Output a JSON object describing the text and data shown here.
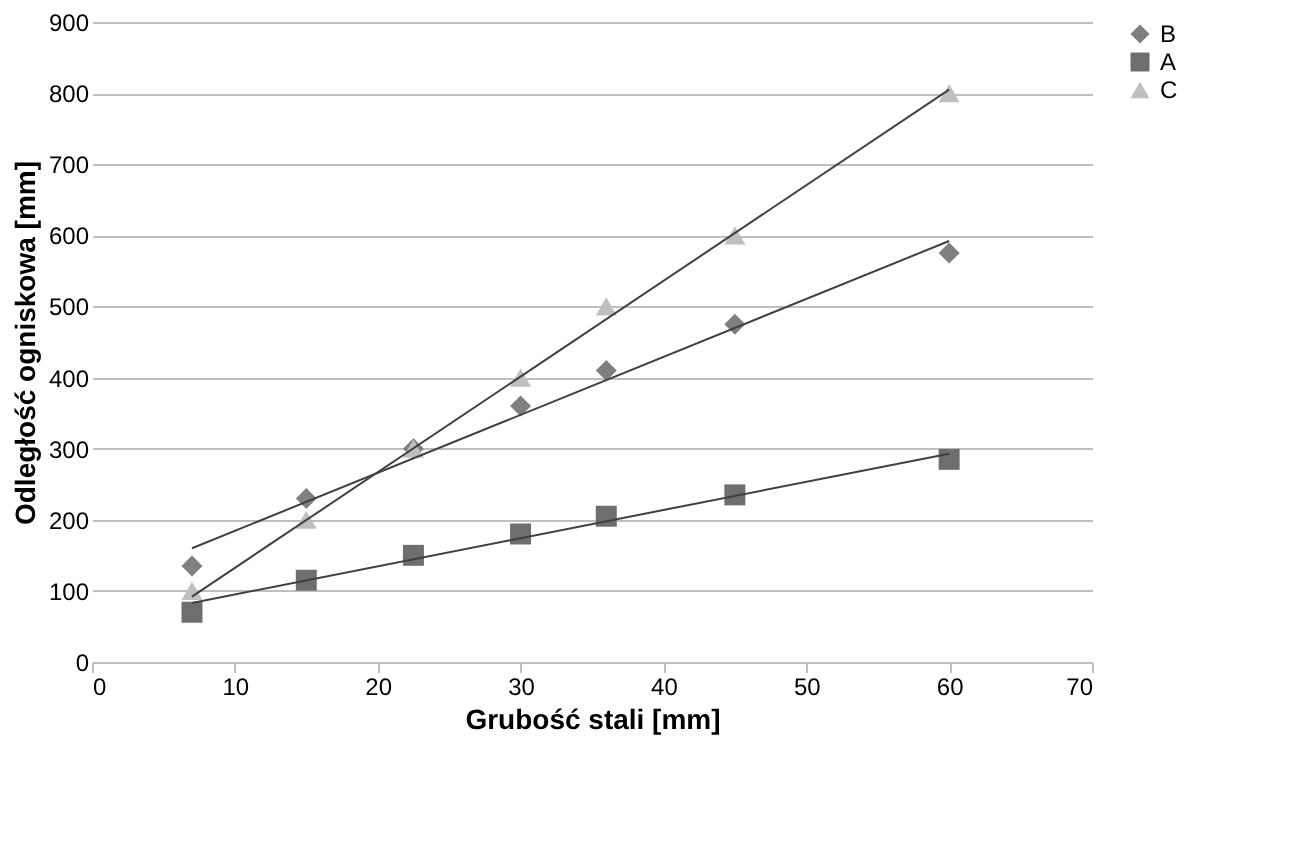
{
  "chart_data": {
    "type": "scatter",
    "xlabel": "Grubość stali [mm]",
    "ylabel": "Odległość ogniskowa [mm]",
    "xlim": [
      0,
      70
    ],
    "xticks": [
      0,
      10,
      20,
      30,
      40,
      50,
      60,
      70
    ],
    "ylim": [
      0,
      900
    ],
    "yticks": [
      0,
      100,
      200,
      300,
      400,
      500,
      600,
      700,
      800,
      900
    ],
    "grid": "y",
    "legend": "right",
    "series": [
      {
        "name": "B",
        "type": "scatter",
        "marker": "diamond",
        "color": "#7f7f7f",
        "x": [
          7,
          15,
          22.5,
          30,
          36,
          45,
          60
        ],
        "values": [
          135,
          230,
          300,
          360,
          410,
          475,
          575
        ]
      },
      {
        "name": "A",
        "type": "scatter",
        "marker": "square",
        "color": "#6e6e6e",
        "x": [
          7,
          15,
          22.5,
          30,
          36,
          45,
          60
        ],
        "values": [
          70,
          115,
          150,
          180,
          205,
          235,
          285
        ]
      },
      {
        "name": "C",
        "type": "scatter",
        "marker": "triangle",
        "color": "#bfbfbf",
        "x": [
          7,
          15,
          22.5,
          30,
          36,
          45,
          60
        ],
        "values": [
          100,
          200,
          300,
          400,
          500,
          600,
          800
        ]
      },
      {
        "type": "line",
        "marker": "none",
        "color": "#404040",
        "x": [
          7,
          60
        ],
        "values": [
          160,
          592
        ]
      },
      {
        "type": "line",
        "marker": "none",
        "color": "#404040",
        "x": [
          7,
          60
        ],
        "values": [
          83,
          293
        ]
      },
      {
        "type": "line",
        "marker": "none",
        "color": "#404040",
        "x": [
          7,
          60
        ],
        "values": [
          92,
          805
        ]
      }
    ]
  }
}
